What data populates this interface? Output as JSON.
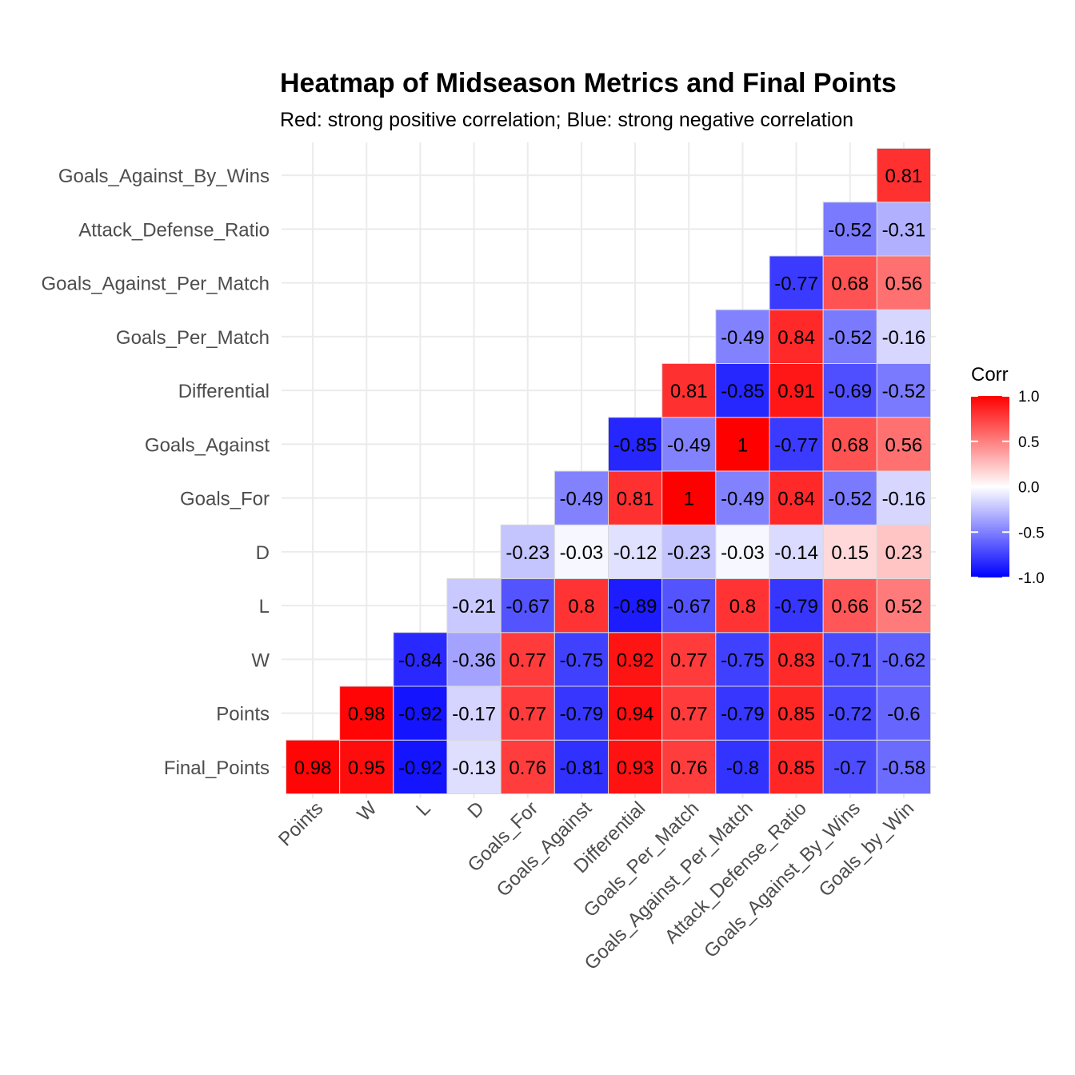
{
  "chart_data": {
    "type": "heatmap",
    "title": "Heatmap of Midseason Metrics and Final Points",
    "subtitle": "Red: strong positive correlation; Blue: strong negative correlation",
    "xlabel": "",
    "ylabel": "",
    "x_categories": [
      "Points",
      "W",
      "L",
      "D",
      "Goals_For",
      "Goals_Against",
      "Differential",
      "Goals_Per_Match",
      "Goals_Against_Per_Match",
      "Attack_Defense_Ratio",
      "Goals_Against_By_Wins",
      "Goals_by_Win"
    ],
    "y_categories": [
      "Final_Points",
      "Points",
      "W",
      "L",
      "D",
      "Goals_For",
      "Goals_Against",
      "Differential",
      "Goals_Per_Match",
      "Goals_Against_Per_Match",
      "Attack_Defense_Ratio",
      "Goals_Against_By_Wins"
    ],
    "values": [
      [
        0.98,
        0.95,
        -0.92,
        -0.13,
        0.76,
        -0.81,
        0.93,
        0.76,
        -0.8,
        0.85,
        -0.7,
        -0.58
      ],
      [
        null,
        0.98,
        -0.92,
        -0.17,
        0.77,
        -0.79,
        0.94,
        0.77,
        -0.79,
        0.85,
        -0.72,
        -0.6
      ],
      [
        null,
        null,
        -0.84,
        -0.36,
        0.77,
        -0.75,
        0.92,
        0.77,
        -0.75,
        0.83,
        -0.71,
        -0.62
      ],
      [
        null,
        null,
        null,
        -0.21,
        -0.67,
        0.8,
        -0.89,
        -0.67,
        0.8,
        -0.79,
        0.66,
        0.52
      ],
      [
        null,
        null,
        null,
        null,
        -0.23,
        -0.03,
        -0.12,
        -0.23,
        -0.03,
        -0.14,
        0.15,
        0.23
      ],
      [
        null,
        null,
        null,
        null,
        null,
        -0.49,
        0.81,
        1,
        -0.49,
        0.84,
        -0.52,
        -0.16
      ],
      [
        null,
        null,
        null,
        null,
        null,
        null,
        -0.85,
        -0.49,
        1,
        -0.77,
        0.68,
        0.56
      ],
      [
        null,
        null,
        null,
        null,
        null,
        null,
        null,
        0.81,
        -0.85,
        0.91,
        -0.69,
        -0.52
      ],
      [
        null,
        null,
        null,
        null,
        null,
        null,
        null,
        null,
        -0.49,
        0.84,
        -0.52,
        -0.16
      ],
      [
        null,
        null,
        null,
        null,
        null,
        null,
        null,
        null,
        null,
        -0.77,
        0.68,
        0.56
      ],
      [
        null,
        null,
        null,
        null,
        null,
        null,
        null,
        null,
        null,
        null,
        -0.52,
        -0.31
      ],
      [
        null,
        null,
        null,
        null,
        null,
        null,
        null,
        null,
        null,
        null,
        null,
        0.81
      ]
    ],
    "legend": {
      "title": "Corr",
      "ticks": [
        "1.0",
        "0.5",
        "0.0",
        "-0.5",
        "-1.0"
      ],
      "range": [
        -1,
        1
      ],
      "placement": "right"
    },
    "colors": {
      "low": "#0000ff",
      "mid": "#ffffff",
      "high": "#ff0000"
    },
    "grid": true
  }
}
